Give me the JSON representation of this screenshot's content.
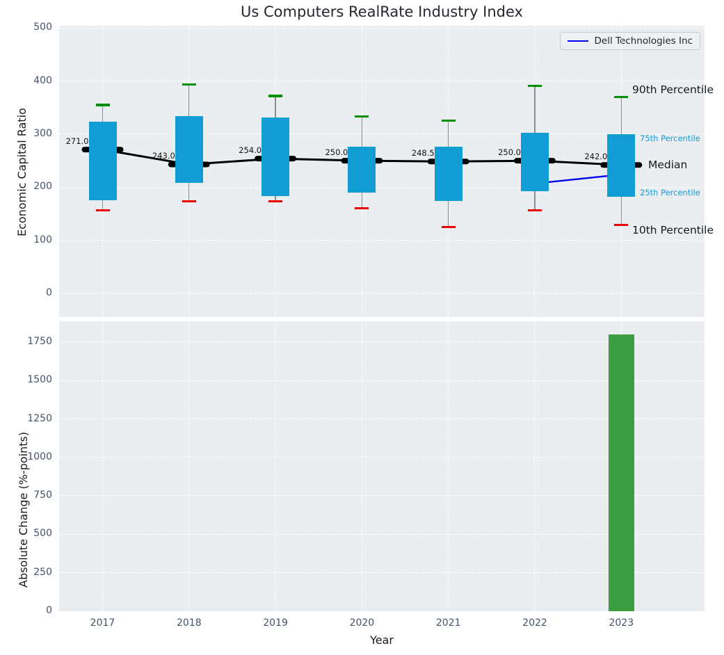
{
  "title": "Us Computers RealRate Industry Index",
  "legend": {
    "label": "Dell Technologies Inc",
    "color": "#0000ee",
    "position": "upper right"
  },
  "annotations": {
    "p90": "90th Percentile",
    "p75": "75th Percentile",
    "median": "Median",
    "p25": "25th Percentile",
    "p10": "10th Percentile"
  },
  "colors": {
    "axes_bg": "#eaeef1",
    "grid": "#ffffff",
    "box": "#0f9dd3",
    "whisker": "#8c8c8c",
    "cap_high": "#058f05",
    "cap_low": "#ee0000",
    "median": "#000000",
    "dell_line": "#0000ee",
    "bar": "#3b9e41",
    "tick_text": "#42526b",
    "percentile_small_text": "#149bd6"
  },
  "chart_data": [
    {
      "type": "boxplot+line",
      "panel": "top",
      "xlabel": "Year",
      "ylabel": "Economic Capital Ratio",
      "categories": [
        "2017",
        "2018",
        "2019",
        "2020",
        "2021",
        "2022",
        "2023"
      ],
      "yticks": [
        0,
        100,
        200,
        300,
        400,
        500
      ],
      "ylim": [
        -45,
        505
      ],
      "grid": "dashed-white",
      "series": [
        {
          "name": "90th Percentile",
          "values": [
            355,
            394,
            372,
            333,
            325,
            391,
            370
          ]
        },
        {
          "name": "75th Percentile",
          "values": [
            324,
            334,
            332,
            277,
            277,
            302,
            300
          ]
        },
        {
          "name": "Median",
          "values": [
            271.0,
            243.0,
            254.0,
            250.0,
            248.5,
            250.0,
            242.0
          ]
        },
        {
          "name": "25th Percentile",
          "values": [
            176,
            208,
            183,
            190,
            174,
            192,
            182
          ]
        },
        {
          "name": "10th Percentile",
          "values": [
            157,
            174,
            174,
            160,
            125,
            156,
            129
          ]
        }
      ],
      "median_labels": [
        "271.0",
        "243.0",
        "254.0",
        "250.0",
        "248.5",
        "250.0",
        "242.0"
      ],
      "company_line": {
        "name": "Dell Technologies Inc",
        "x": [
          "2022",
          "2023"
        ],
        "y": [
          207,
          224
        ]
      }
    },
    {
      "type": "bar",
      "panel": "bottom",
      "xlabel": "Year",
      "ylabel": "Absolute Change (%-points)",
      "categories": [
        "2017",
        "2018",
        "2019",
        "2020",
        "2021",
        "2022",
        "2023"
      ],
      "values": [
        0,
        0,
        0,
        0,
        0,
        0,
        1800
      ],
      "yticks": [
        0,
        250,
        500,
        750,
        1000,
        1250,
        1500,
        1750
      ],
      "ylim": [
        0,
        1885
      ],
      "grid": "dashed-white"
    }
  ]
}
